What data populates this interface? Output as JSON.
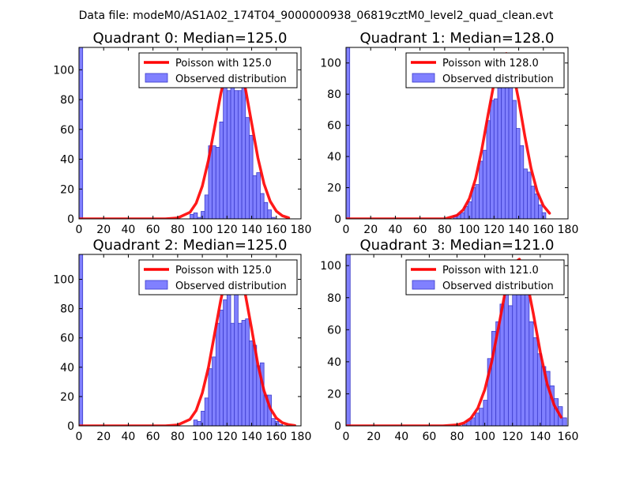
{
  "figure_title": "Data file: modeM0/AS1A02_174T04_9000000938_06819cztM0_level2_quad_clean.evt",
  "legend": {
    "observed_label": "Observed distribution"
  },
  "colors": {
    "poisson": "#ff0000",
    "bar_fill": "#8080ff",
    "bar_edge": "#3a3acb",
    "axes": "#000000"
  },
  "chart_data": [
    {
      "type": "bar",
      "title": "Quadrant 0: Median=125.0",
      "poisson_label": "Poisson with 125.0",
      "median": 125.0,
      "xlim": [
        0,
        180
      ],
      "ylim": [
        0,
        115
      ],
      "xticks": [
        "0",
        "20",
        "40",
        "60",
        "80",
        "100",
        "120",
        "140",
        "160",
        "180"
      ],
      "yticks": [
        "0",
        "20",
        "40",
        "60",
        "80",
        "100"
      ],
      "legend_position": "upper right",
      "bin_width": 3,
      "bins": [
        0,
        72,
        75,
        78,
        81,
        84,
        87,
        90,
        93,
        96,
        99,
        102,
        105,
        108,
        111,
        114,
        117,
        120,
        123,
        126,
        129,
        132,
        135,
        138,
        141,
        144,
        147,
        150,
        153,
        156,
        159,
        162,
        165
      ],
      "counts": [
        115,
        0,
        0,
        0,
        0,
        0,
        0,
        3,
        4,
        1,
        5,
        16,
        49,
        49,
        48,
        65,
        99,
        86,
        103,
        86,
        86,
        92,
        68,
        56,
        29,
        31,
        17,
        11,
        6,
        1,
        0,
        0,
        0
      ],
      "poisson_x": [
        0,
        10,
        20,
        30,
        40,
        50,
        60,
        70,
        80,
        90,
        95,
        100,
        105,
        110,
        115,
        120,
        125,
        130,
        135,
        140,
        145,
        150,
        155,
        160,
        165,
        170
      ],
      "poisson_y": [
        0,
        0,
        0,
        0,
        0,
        0,
        0,
        0,
        0.6,
        4.4,
        10.5,
        22,
        39.5,
        61.5,
        84,
        102,
        110,
        104,
        87,
        64,
        41,
        23.5,
        11.8,
        5.2,
        2,
        0.7
      ]
    },
    {
      "type": "bar",
      "title": "Quadrant 1: Median=128.0",
      "poisson_label": "Poisson with 128.0",
      "median": 128.0,
      "xlim": [
        0,
        180
      ],
      "ylim": [
        0,
        110
      ],
      "xticks": [
        "0",
        "20",
        "40",
        "60",
        "80",
        "100",
        "120",
        "140",
        "160",
        "180"
      ],
      "yticks": [
        "0",
        "20",
        "40",
        "60",
        "80",
        "100"
      ],
      "legend_position": "upper right",
      "bin_width": 3,
      "bins": [
        0,
        72,
        75,
        78,
        81,
        84,
        87,
        90,
        93,
        96,
        99,
        102,
        105,
        108,
        111,
        114,
        117,
        120,
        123,
        126,
        129,
        132,
        135,
        138,
        141,
        144,
        147,
        150,
        153,
        156,
        159,
        162
      ],
      "counts": [
        110,
        0,
        0,
        0,
        0,
        0,
        2,
        3,
        4,
        8,
        11,
        20,
        22,
        37,
        44,
        63,
        76,
        77,
        84,
        99,
        104,
        99,
        76,
        58,
        47,
        32,
        30,
        21,
        16,
        9,
        4,
        0
      ],
      "poisson_x": [
        0,
        10,
        20,
        30,
        40,
        50,
        60,
        70,
        80,
        90,
        95,
        100,
        105,
        110,
        115,
        120,
        125,
        130,
        135,
        140,
        145,
        150,
        155,
        160,
        165
      ],
      "poisson_y": [
        0,
        0,
        0,
        0,
        0,
        0,
        0,
        0,
        0,
        2.3,
        5.8,
        13,
        25.5,
        44,
        66,
        87,
        102,
        106,
        96,
        76,
        53,
        32.5,
        17.5,
        8.4,
        3.6
      ]
    },
    {
      "type": "bar",
      "title": "Quadrant 2: Median=125.0",
      "poisson_label": "Poisson with 125.0",
      "median": 125.0,
      "xlim": [
        0,
        180
      ],
      "ylim": [
        0,
        117
      ],
      "xticks": [
        "0",
        "20",
        "40",
        "60",
        "80",
        "100",
        "120",
        "140",
        "160",
        "180"
      ],
      "yticks": [
        "0",
        "20",
        "40",
        "60",
        "80",
        "100"
      ],
      "legend_position": "upper right",
      "bin_width": 3,
      "bins": [
        0,
        72,
        75,
        78,
        81,
        84,
        87,
        90,
        93,
        96,
        99,
        102,
        105,
        108,
        111,
        114,
        117,
        120,
        123,
        126,
        129,
        132,
        135,
        138,
        141,
        144,
        147,
        150,
        153,
        156,
        159,
        162,
        165,
        168
      ],
      "counts": [
        117,
        0,
        0,
        0,
        0,
        0,
        0,
        0,
        4,
        3,
        10,
        19,
        39,
        47,
        70,
        79,
        86,
        103,
        70,
        109,
        70,
        72,
        73,
        58,
        55,
        41,
        43,
        21,
        21,
        5,
        3,
        1,
        0,
        0
      ],
      "poisson_x": [
        0,
        10,
        20,
        30,
        40,
        50,
        60,
        70,
        80,
        90,
        95,
        100,
        105,
        110,
        115,
        120,
        125,
        130,
        135,
        140,
        145,
        150,
        155,
        160,
        165,
        170,
        175
      ],
      "poisson_y": [
        0,
        0,
        0,
        0,
        0,
        0,
        0,
        0,
        0.6,
        4.4,
        10.5,
        22.5,
        40,
        63,
        86,
        104,
        112,
        106,
        89,
        66,
        42,
        24,
        12,
        5.3,
        2.1,
        0.8,
        0.2
      ]
    },
    {
      "type": "bar",
      "title": "Quadrant 3: Median=121.0",
      "poisson_label": "Poisson with 121.0",
      "median": 121.0,
      "xlim": [
        0,
        160
      ],
      "ylim": [
        0,
        107
      ],
      "xticks": [
        "0",
        "20",
        "40",
        "60",
        "80",
        "100",
        "120",
        "140",
        "160"
      ],
      "yticks": [
        "0",
        "20",
        "40",
        "60",
        "80",
        "100"
      ],
      "legend_position": "upper right",
      "bin_width": 3,
      "bins": [
        0,
        72,
        75,
        78,
        81,
        84,
        87,
        90,
        93,
        96,
        99,
        102,
        105,
        108,
        111,
        114,
        117,
        120,
        123,
        126,
        129,
        132,
        135,
        138,
        141,
        144,
        147,
        150,
        153,
        156
      ],
      "counts": [
        107,
        0,
        0,
        0,
        0,
        1,
        3,
        5,
        8,
        11,
        16,
        42,
        59,
        65,
        76,
        84,
        75,
        84,
        94,
        87,
        84,
        65,
        55,
        45,
        37,
        34,
        25,
        17,
        12,
        5
      ],
      "poisson_x": [
        0,
        10,
        20,
        30,
        40,
        50,
        60,
        70,
        80,
        85,
        90,
        95,
        100,
        105,
        110,
        115,
        120,
        125,
        130,
        135,
        140,
        145,
        150,
        155
      ],
      "poisson_y": [
        0,
        0,
        0,
        0,
        0,
        0,
        0,
        0,
        0.6,
        1.8,
        4.8,
        11,
        22.5,
        40,
        62,
        85,
        101,
        104,
        92,
        70,
        46,
        26,
        13,
        5.4
      ]
    }
  ]
}
